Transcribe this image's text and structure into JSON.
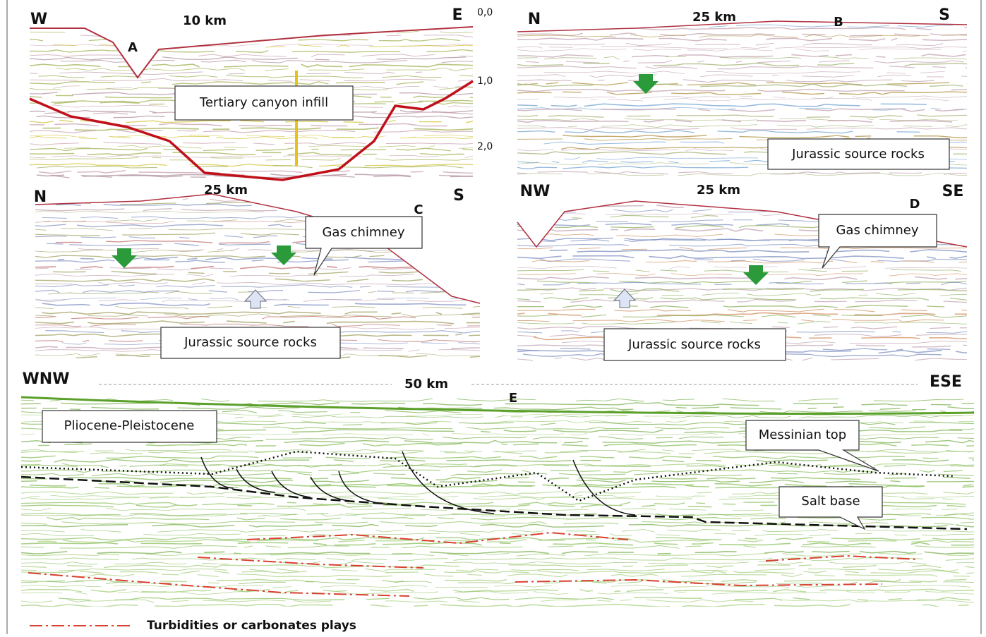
{
  "panels": [
    {
      "letter": "A",
      "left": "W",
      "right": "E",
      "scale": "10 km",
      "labels": [
        "Tertiary canyon infill"
      ],
      "depth_labels": [
        "0,0",
        "1,0",
        "2,0"
      ]
    },
    {
      "letter": "B",
      "left": "N",
      "right": "S",
      "scale": "25 km",
      "labels": [
        "Jurassic source rocks"
      ]
    },
    {
      "letter": "C",
      "left": "N",
      "right": "S",
      "scale": "25 km",
      "labels": [
        "Gas chimney",
        "Jurassic source rocks"
      ]
    },
    {
      "letter": "D",
      "left": "NW",
      "right": "SE",
      "scale": "25 km",
      "labels": [
        "Gas chimney",
        "Jurassic source rocks"
      ]
    },
    {
      "letter": "E",
      "left": "WNW",
      "right": "ESE",
      "scale": "50 km",
      "labels": [
        "Pliocene-Pleistocene",
        "Messinian top",
        "Salt base"
      ]
    }
  ],
  "legend": {
    "label": "Turbidities or carbonates plays"
  }
}
